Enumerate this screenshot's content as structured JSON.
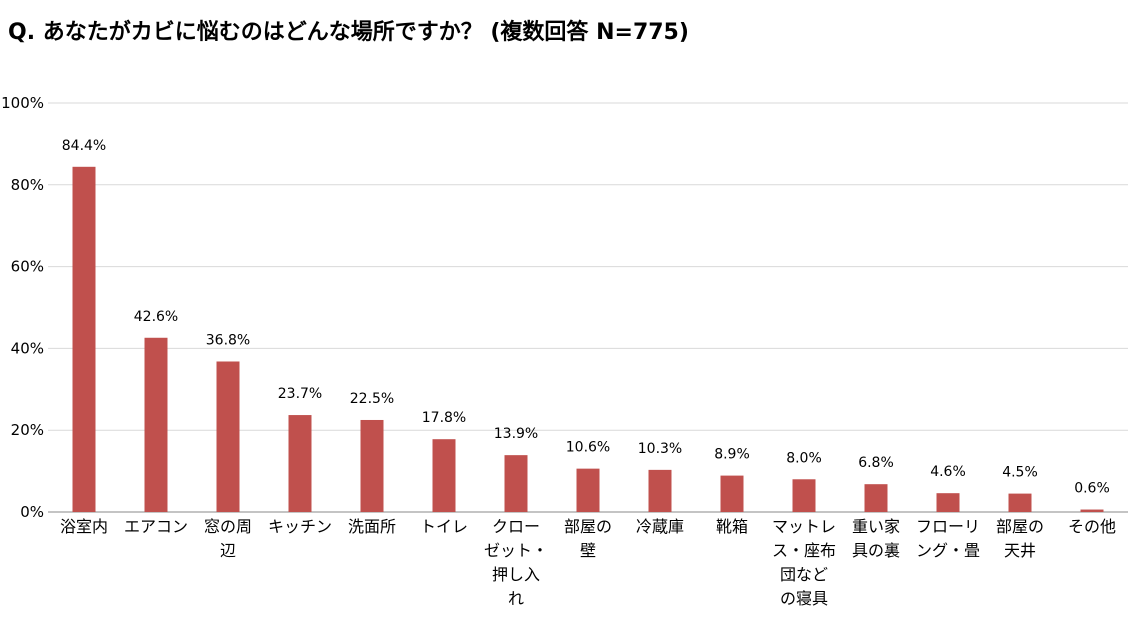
{
  "title": "Q. あなたがカビに悩むのはどんな場所ですか？ (複数回答 N=775)",
  "chart_data": {
    "type": "bar",
    "title": "Q. あなたがカビに悩むのはどんな場所ですか？ (複数回答 N=775)",
    "xlabel": "",
    "ylabel": "",
    "ylim": [
      0,
      100
    ],
    "grid": true,
    "bar_color": "#c0504d",
    "y_ticks": [
      "0%",
      "20%",
      "40%",
      "60%",
      "80%",
      "100%"
    ],
    "categories": [
      "浴室内",
      "エアコン",
      "窓の周辺",
      "キッチン",
      "洗面所",
      "トイレ",
      "クローゼット・押し入れ",
      "部屋の壁",
      "冷蔵庫",
      "靴箱",
      "マットレス・座布団などの寝具",
      "重い家具の裏",
      "フローリング・畳",
      "部屋の天井",
      "その他"
    ],
    "category_lines": [
      [
        "浴室内"
      ],
      [
        "エアコン"
      ],
      [
        "窓の周",
        "辺"
      ],
      [
        "キッチン"
      ],
      [
        "洗面所"
      ],
      [
        "トイレ"
      ],
      [
        "クロー",
        "ゼット・",
        "押し入",
        "れ"
      ],
      [
        "部屋の",
        "壁"
      ],
      [
        "冷蔵庫"
      ],
      [
        "靴箱"
      ],
      [
        "マットレ",
        "ス・座布",
        "団など",
        "の寝具"
      ],
      [
        "重い家",
        "具の裏"
      ],
      [
        "フローリ",
        "ング・畳"
      ],
      [
        "部屋の",
        "天井"
      ],
      [
        "その他"
      ]
    ],
    "values": [
      84.4,
      42.6,
      36.8,
      23.7,
      22.5,
      17.8,
      13.9,
      10.6,
      10.3,
      8.9,
      8.0,
      6.8,
      4.6,
      4.5,
      0.6
    ],
    "data_labels": [
      "84.4%",
      "42.6%",
      "36.8%",
      "23.7%",
      "22.5%",
      "17.8%",
      "13.9%",
      "10.6%",
      "10.3%",
      "8.9%",
      "8.0%",
      "6.8%",
      "4.6%",
      "4.5%",
      "0.6%"
    ]
  }
}
